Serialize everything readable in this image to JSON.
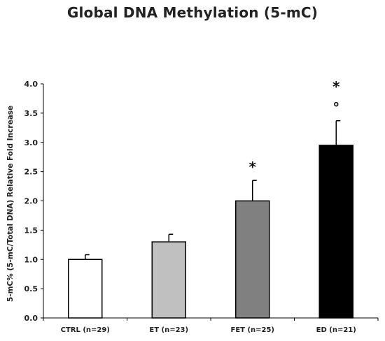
{
  "chart_data": {
    "type": "bar",
    "title": "Global DNA Methylation (5-mC)",
    "ylabel": "5-mC% (5-mC/Total DNA) Relative Fold Increase",
    "xlabel": "",
    "ylim": [
      0,
      4
    ],
    "yticks": [
      "0.0",
      "0.5",
      "1.0",
      "1.5",
      "2.0",
      "2.5",
      "3.0",
      "3.5",
      "4.0"
    ],
    "categories": [
      "CTRL (n=29)",
      "ET (n=23)",
      "FET (n=25)",
      "ED (n=21)"
    ],
    "values": [
      1.0,
      1.3,
      2.0,
      2.95
    ],
    "errors": [
      0.08,
      0.13,
      0.35,
      0.42
    ],
    "bar_colors": [
      "#ffffff",
      "#c0c0c0",
      "#808080",
      "#000000"
    ],
    "annotations": [
      {
        "category": "FET (n=25)",
        "text": "*"
      },
      {
        "category": "ED (n=21)",
        "text": "*"
      },
      {
        "category": "ED (n=21)",
        "text": "°"
      }
    ],
    "grid": false,
    "legend": "none"
  }
}
